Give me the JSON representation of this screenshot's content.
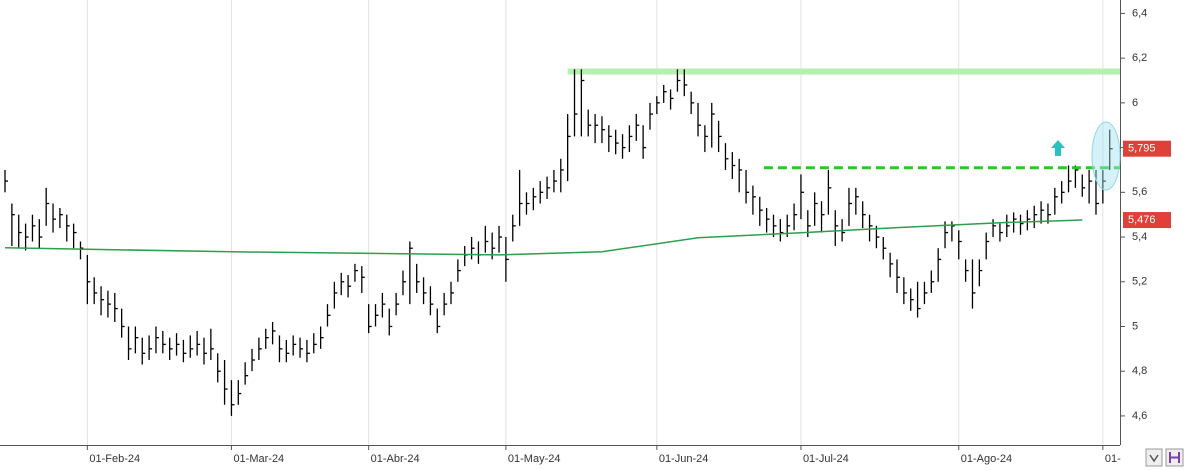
{
  "chart_data": {
    "type": "ohlc",
    "high": [
      5.7,
      5.55,
      5.5,
      5.46,
      5.5,
      5.48,
      5.62,
      5.55,
      5.53,
      5.5,
      5.46,
      5.38,
      5.32,
      5.22,
      5.18,
      5.16,
      5.15,
      5.08,
      5.0,
      5.0,
      4.95,
      4.96,
      5.0,
      4.98,
      4.95,
      4.97,
      4.94,
      4.96,
      4.98,
      4.95,
      4.99,
      4.88,
      4.85,
      4.76,
      4.76,
      4.84,
      4.9,
      4.95,
      4.99,
      5.02,
      4.96,
      4.94,
      4.96,
      4.95,
      4.94,
      4.97,
      5.0,
      5.1,
      5.2,
      5.24,
      5.23,
      5.28,
      5.27,
      5.1,
      5.1,
      5.15,
      5.08,
      5.15,
      5.25,
      5.38,
      5.28,
      5.22,
      5.18,
      5.08,
      5.15,
      5.2,
      5.3,
      5.36,
      5.4,
      5.38,
      5.45,
      5.42,
      5.45,
      5.4,
      5.5,
      5.7,
      5.6,
      5.62,
      5.65,
      5.67,
      5.7,
      5.75,
      5.95,
      6.15,
      6.15,
      5.97,
      5.95,
      5.94,
      5.9,
      5.88,
      5.86,
      5.9,
      5.95,
      5.9,
      6.0,
      6.03,
      6.08,
      6.06,
      6.15,
      6.15,
      6.05,
      6.0,
      5.9,
      6.0,
      5.92,
      5.82,
      5.78,
      5.75,
      5.7,
      5.63,
      5.58,
      5.53,
      5.5,
      5.48,
      5.5,
      5.55,
      5.68,
      5.52,
      5.6,
      5.56,
      5.7,
      5.52,
      5.48,
      5.62,
      5.62,
      5.56,
      5.5,
      5.45,
      5.4,
      5.33,
      5.3,
      5.22,
      5.17,
      5.2,
      5.2,
      5.25,
      5.35,
      5.47,
      5.47,
      5.43,
      5.3,
      5.3,
      5.3,
      5.42,
      5.48,
      5.46,
      5.5,
      5.51,
      5.5,
      5.52,
      5.54,
      5.56,
      5.55,
      5.62,
      5.65,
      5.72,
      5.72,
      5.68,
      5.7,
      5.7,
      5.7,
      5.88
    ],
    "low": [
      5.6,
      5.36,
      5.35,
      5.34,
      5.38,
      5.35,
      5.45,
      5.42,
      5.44,
      5.38,
      5.35,
      5.3,
      5.1,
      5.1,
      5.05,
      5.04,
      5.02,
      4.95,
      4.85,
      4.88,
      4.83,
      4.85,
      4.88,
      4.88,
      4.85,
      4.87,
      4.84,
      4.86,
      4.87,
      4.83,
      4.85,
      4.75,
      4.65,
      4.6,
      4.65,
      4.74,
      4.8,
      4.85,
      4.9,
      4.92,
      4.84,
      4.84,
      4.87,
      4.86,
      4.84,
      4.88,
      4.9,
      5.0,
      5.08,
      5.14,
      5.13,
      5.2,
      5.15,
      4.97,
      5.0,
      5.04,
      4.96,
      5.05,
      5.14,
      5.1,
      5.15,
      5.1,
      5.05,
      4.97,
      5.05,
      5.1,
      5.2,
      5.27,
      5.3,
      5.28,
      5.33,
      5.3,
      5.33,
      5.2,
      5.38,
      5.45,
      5.5,
      5.52,
      5.55,
      5.57,
      5.6,
      5.6,
      5.65,
      5.85,
      5.85,
      5.85,
      5.82,
      5.82,
      5.78,
      5.77,
      5.75,
      5.78,
      5.83,
      5.75,
      5.88,
      5.95,
      6.0,
      5.97,
      6.05,
      6.03,
      5.95,
      5.85,
      5.78,
      5.8,
      5.78,
      5.7,
      5.66,
      5.6,
      5.55,
      5.5,
      5.45,
      5.42,
      5.4,
      5.38,
      5.4,
      5.43,
      5.48,
      5.4,
      5.45,
      5.42,
      5.5,
      5.36,
      5.38,
      5.45,
      5.5,
      5.44,
      5.38,
      5.35,
      5.3,
      5.22,
      5.15,
      5.1,
      5.07,
      5.04,
      5.1,
      5.15,
      5.2,
      5.35,
      5.38,
      5.3,
      5.2,
      5.08,
      5.18,
      5.3,
      5.4,
      5.38,
      5.4,
      5.42,
      5.41,
      5.43,
      5.44,
      5.46,
      5.46,
      5.5,
      5.55,
      5.6,
      5.62,
      5.58,
      5.55,
      5.5,
      5.55,
      5.7
    ],
    "close": [
      5.65,
      5.5,
      5.42,
      5.4,
      5.45,
      5.4,
      5.55,
      5.48,
      5.5,
      5.45,
      5.42,
      5.35,
      5.2,
      5.15,
      5.12,
      5.1,
      5.08,
      5.0,
      4.9,
      4.95,
      4.88,
      4.9,
      4.95,
      4.92,
      4.9,
      4.92,
      4.88,
      4.9,
      4.92,
      4.88,
      4.9,
      4.8,
      4.72,
      4.65,
      4.7,
      4.78,
      4.85,
      4.9,
      4.95,
      4.98,
      4.9,
      4.88,
      4.92,
      4.9,
      4.88,
      4.92,
      4.95,
      5.05,
      5.15,
      5.2,
      5.18,
      5.25,
      5.22,
      5.0,
      5.05,
      5.1,
      5.0,
      5.1,
      5.2,
      5.35,
      5.2,
      5.15,
      5.1,
      5.0,
      5.1,
      5.15,
      5.25,
      5.32,
      5.35,
      5.32,
      5.38,
      5.35,
      5.4,
      5.3,
      5.45,
      5.55,
      5.55,
      5.58,
      5.6,
      5.62,
      5.65,
      5.7,
      5.85,
      5.95,
      6.1,
      5.9,
      5.9,
      5.88,
      5.85,
      5.82,
      5.8,
      5.85,
      5.9,
      5.8,
      5.95,
      6.0,
      6.05,
      6.02,
      6.1,
      6.08,
      6.0,
      5.9,
      5.85,
      5.95,
      5.85,
      5.75,
      5.72,
      5.7,
      5.6,
      5.58,
      5.52,
      5.48,
      5.45,
      5.42,
      5.45,
      5.5,
      5.6,
      5.45,
      5.55,
      5.5,
      5.62,
      5.45,
      5.42,
      5.55,
      5.58,
      5.5,
      5.45,
      5.4,
      5.35,
      5.28,
      5.22,
      5.15,
      5.12,
      5.08,
      5.15,
      5.2,
      5.3,
      5.42,
      5.45,
      5.38,
      5.25,
      5.15,
      5.25,
      5.38,
      5.45,
      5.42,
      5.45,
      5.48,
      5.46,
      5.48,
      5.5,
      5.52,
      5.5,
      5.58,
      5.6,
      5.65,
      5.7,
      5.62,
      5.65,
      5.55,
      5.65,
      5.795
    ],
    "bar_color": "#000000",
    "ma": {
      "x": [
        0,
        33,
        72,
        87,
        101,
        116,
        130,
        145,
        157
      ],
      "values": [
        5.352,
        5.334,
        5.32,
        5.334,
        5.397,
        5.419,
        5.442,
        5.464,
        5.476
      ],
      "color": "#2e9e4f"
    },
    "levels": [
      {
        "value": 6.14,
        "color": "#b6f0b0",
        "style": "solid"
      },
      {
        "value": 5.71,
        "color": "#22cc22",
        "style": "dashed"
      }
    ],
    "price_labels": [
      {
        "value": 5.795,
        "label": "5,795"
      },
      {
        "value": 5.476,
        "label": "5,476"
      }
    ],
    "price_label_color": "#e0403a",
    "xlim": [
      -0.73,
      162.5
    ],
    "xticks": [
      {
        "value": 12,
        "label": "01-Feb-24"
      },
      {
        "value": 33,
        "label": "01-Mar-24"
      },
      {
        "value": 53,
        "label": "01-Abr-24"
      },
      {
        "value": 73,
        "label": "01-May-24"
      },
      {
        "value": 95,
        "label": "01-Jun-24"
      },
      {
        "value": 116,
        "label": "01-Jul-24"
      },
      {
        "value": 139,
        "label": "01-Ago-24"
      },
      {
        "value": 160,
        "label": "01-"
      }
    ],
    "ylim": [
      4.47,
      6.46
    ],
    "yticks": [
      {
        "value": 4.6,
        "label": "4,6"
      },
      {
        "value": 4.8,
        "label": "4,8"
      },
      {
        "value": 5,
        "label": "5"
      },
      {
        "value": 5.2,
        "label": "5,2"
      },
      {
        "value": 5.4,
        "label": "5,4"
      },
      {
        "value": 5.6,
        "label": "5,6"
      },
      {
        "value": 5.8,
        "label": "5,8"
      },
      {
        "value": 6,
        "label": "6"
      },
      {
        "value": 6.2,
        "label": "6,2"
      },
      {
        "value": 6.4,
        "label": "6,4"
      }
    ],
    "grid": true
  }
}
